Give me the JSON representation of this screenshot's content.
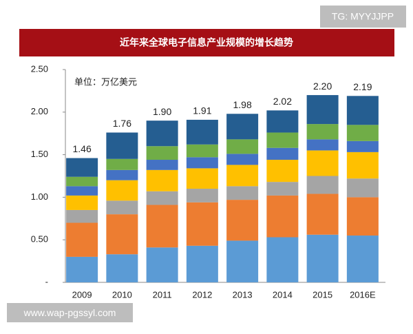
{
  "watermark_top": "TG: MYYJJPP",
  "watermark_bottom": "www.wap-pgssyl.com",
  "chart_data": {
    "type": "stacked_bar",
    "title": "近年来全球电子信息产业规模的增长趋势",
    "unit_label": "单位：万亿美元",
    "categories": [
      "2009",
      "2010",
      "2011",
      "2012",
      "2013",
      "2014",
      "2015",
      "2016E"
    ],
    "totals": [
      1.46,
      1.76,
      1.9,
      1.91,
      1.98,
      2.02,
      2.2,
      2.19
    ],
    "value_labels": [
      "1.46",
      "1.76",
      "1.90",
      "1.91",
      "1.98",
      "2.02",
      "2.20",
      "2.19"
    ],
    "series": [
      {
        "color": "#5b9bd5",
        "values": [
          0.3,
          0.33,
          0.41,
          0.43,
          0.49,
          0.53,
          0.56,
          0.55
        ]
      },
      {
        "color": "#ed7d31",
        "values": [
          0.4,
          0.47,
          0.5,
          0.51,
          0.48,
          0.49,
          0.48,
          0.45
        ]
      },
      {
        "color": "#a5a5a5",
        "values": [
          0.15,
          0.16,
          0.16,
          0.16,
          0.16,
          0.16,
          0.21,
          0.22
        ]
      },
      {
        "color": "#ffc000",
        "values": [
          0.17,
          0.24,
          0.25,
          0.24,
          0.25,
          0.26,
          0.3,
          0.31
        ]
      },
      {
        "color": "#4472c4",
        "values": [
          0.11,
          0.12,
          0.12,
          0.13,
          0.13,
          0.14,
          0.13,
          0.13
        ]
      },
      {
        "color": "#70ad47",
        "values": [
          0.11,
          0.13,
          0.16,
          0.15,
          0.17,
          0.18,
          0.18,
          0.19
        ]
      },
      {
        "color": "#255e91",
        "values": [
          0.22,
          0.31,
          0.3,
          0.29,
          0.3,
          0.26,
          0.34,
          0.34
        ]
      }
    ],
    "ylim": [
      0,
      2.5
    ],
    "yticks": [
      {
        "value": 0,
        "label": "-"
      },
      {
        "value": 0.5,
        "label": "0.50"
      },
      {
        "value": 1,
        "label": "1.00"
      },
      {
        "value": 1.5,
        "label": "1.50"
      },
      {
        "value": 2,
        "label": "2.00"
      },
      {
        "value": 2.5,
        "label": "2.50"
      }
    ]
  }
}
